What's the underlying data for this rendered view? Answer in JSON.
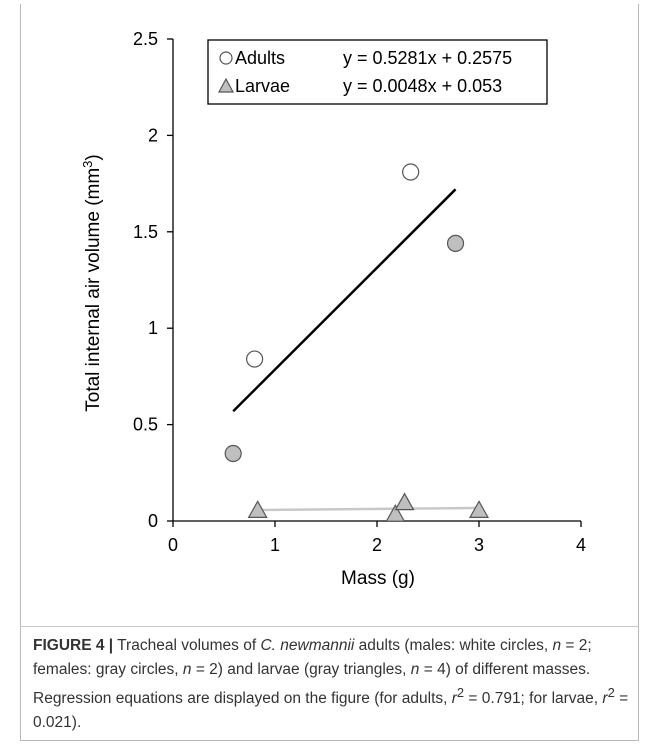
{
  "chart_data": {
    "type": "scatter",
    "xlabel": "Mass (g)",
    "ylabel": "Total internal air volume (mm",
    "ylabel_sup": "3",
    "ylabel_end": ")",
    "xlim": [
      0,
      4
    ],
    "ylim": [
      0,
      2.5
    ],
    "xticks": [
      "0",
      "1",
      "2",
      "3",
      "4"
    ],
    "yticks": [
      "0",
      "0.5",
      "1",
      "1.5",
      "2",
      "2.5"
    ],
    "legend": [
      {
        "symbol": "○",
        "label": "Adults",
        "equation": "y = 0.5281x + 0.2575"
      },
      {
        "symbol": "△",
        "label": "Larvae",
        "equation": "y = 0.0048x + 0.053"
      }
    ],
    "series": [
      {
        "name": "Adults",
        "points": [
          {
            "x": 0.8,
            "y": 0.84,
            "fill": "#ffffff"
          },
          {
            "x": 2.33,
            "y": 1.81,
            "fill": "#ffffff"
          },
          {
            "x": 0.59,
            "y": 0.35,
            "fill": "#bfbfbf"
          },
          {
            "x": 2.77,
            "y": 1.44,
            "fill": "#bfbfbf"
          }
        ],
        "marker": "circle",
        "fit": {
          "slope": 0.5281,
          "intercept": 0.2575,
          "x_range": [
            0.59,
            2.77
          ],
          "color": "#000000"
        }
      },
      {
        "name": "Larvae",
        "points": [
          {
            "x": 0.83,
            "y": 0.05,
            "fill": "#bfbfbf"
          },
          {
            "x": 2.18,
            "y": 0.03,
            "fill": "#bfbfbf"
          },
          {
            "x": 2.27,
            "y": 0.09,
            "fill": "#bfbfbf"
          },
          {
            "x": 3.0,
            "y": 0.05,
            "fill": "#bfbfbf"
          }
        ],
        "marker": "triangle",
        "fit": {
          "slope": 0.0048,
          "intercept": 0.053,
          "x_range": [
            0.83,
            3.0
          ],
          "color": "#c8c8c8"
        }
      }
    ]
  },
  "caption": {
    "label": "FIGURE 4 |",
    "t1": " Tracheal volumes of ",
    "species": "C. newmannii",
    "t2": " adults (males: white circles, ",
    "n1": "n",
    "t3": " = 2; females: gray circles, ",
    "n2": "n",
    "t4": " = 2) and larvae (gray triangles, ",
    "n3": "n",
    "t5": " = 4) of different masses. Regression equations are displayed on the figure (for adults, ",
    "r1": "r",
    "r1sup": "2",
    "t6": " = 0.791; for larvae, ",
    "r2": "r",
    "r2sup": "2",
    "t7": " = 0.021)."
  }
}
